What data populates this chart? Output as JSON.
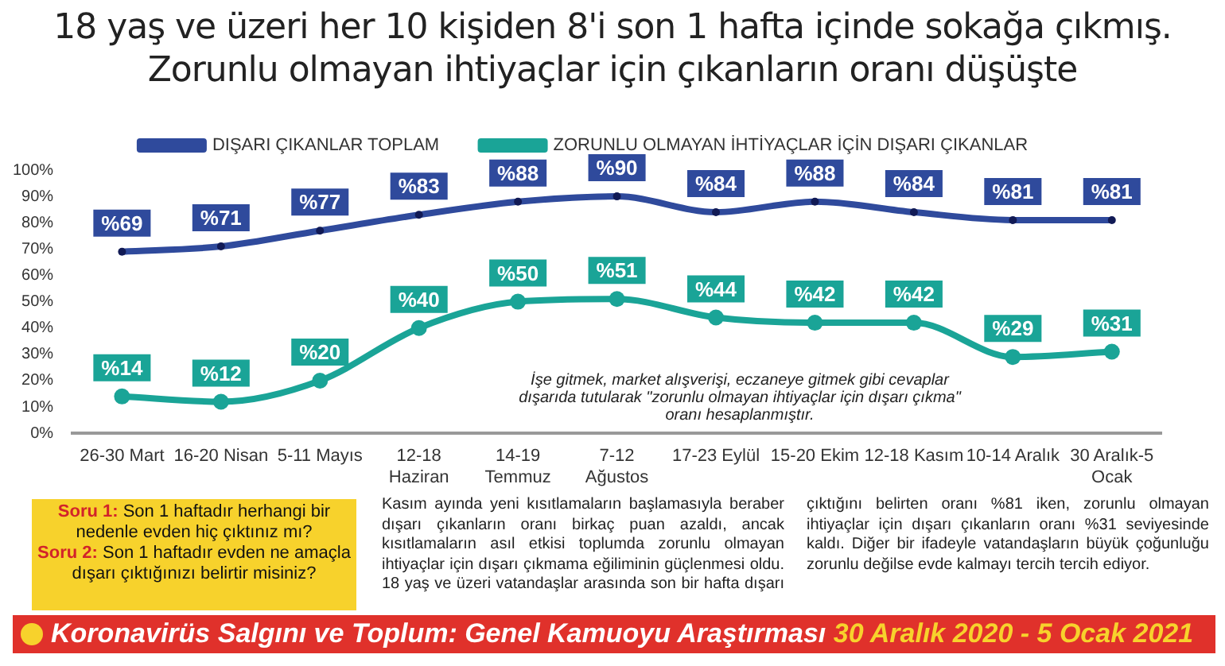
{
  "chart_data": {
    "type": "line",
    "title": "18 yaş ve üzeri her 10 kişiden 8'i son 1 hafta içinde sokağa çıkmış. Zorunlu olmayan ihtiyaçlar için çıkanların oranı düşüşte",
    "categories": [
      "26-30 Mart",
      "16-20 Nisan",
      "5-11 Mayıs",
      "12-18 Haziran",
      "14-19 Temmuz",
      "7-12 Ağustos",
      "17-23 Eylül",
      "15-20 Ekim",
      "12-18 Kasım",
      "10-14 Aralık",
      "30 Aralık-5 Ocak"
    ],
    "series": [
      {
        "name": "DIŞARI ÇIKANLAR TOPLAM",
        "color": "#2f4a9c",
        "values": [
          69,
          71,
          77,
          83,
          88,
          90,
          84,
          88,
          84,
          81,
          81
        ],
        "value_labels": [
          "%69",
          "%71",
          "%77",
          "%83",
          "%88",
          "%90",
          "%84",
          "%88",
          "%84",
          "%81",
          "%81"
        ]
      },
      {
        "name": "ZORUNLU OLMAYAN İHTİYAÇLAR İÇİN DIŞARI ÇIKANLAR",
        "color": "#1aa497",
        "values": [
          14,
          12,
          20,
          40,
          50,
          51,
          44,
          42,
          42,
          29,
          31
        ],
        "value_labels": [
          "%14",
          "%12",
          "%20",
          "%40",
          "%50",
          "%51",
          "%44",
          "%42",
          "%42",
          "%29",
          "%31"
        ]
      }
    ],
    "ylim": [
      0,
      100
    ],
    "yticks": [
      {
        "value": 0,
        "label": "0%"
      },
      {
        "value": 10,
        "label": "10%"
      },
      {
        "value": 20,
        "label": "20%"
      },
      {
        "value": 30,
        "label": "30%"
      },
      {
        "value": 40,
        "label": "40%"
      },
      {
        "value": 50,
        "label": "50%"
      },
      {
        "value": 60,
        "label": "60%"
      },
      {
        "value": 70,
        "label": "70%"
      },
      {
        "value": 80,
        "label": "80%"
      },
      {
        "value": 90,
        "label": "90%"
      },
      {
        "value": 100,
        "label": "100%"
      }
    ],
    "grid": false,
    "legend": "top",
    "marker": "circle",
    "line_style": "solid",
    "annotations": [
      "İşe gitmek, market alışverişi, eczaneye gitmek gibi cevaplar dışarıda tutularak \"zorunlu olmayan ihtiyaçlar için dışarı çıkma\" oranı hesaplanmıştır.",
      "Soru 1: Son 1 haftadır herhangi bir nedenle evden hiç çıktınız mı?",
      "Soru 2: Son 1 haftadır evden ne amaçla dışarı çıktığınızı belirtir misiniz?",
      "Kasım ayında yeni kısıtlamaların başlamasıyla beraber dışarı çıkanların oranı birkaç puan azaldı, ancak kısıtlamaların asıl etkisi toplumda zorunlu olmayan ihtiyaçlar için dışarı çıkmama eğiliminin güçlenmesi oldu. 18 yaş ve üzeri vatandaşlar arasında son bir hafta dışarı çıktığını belirten oranı %81 iken, zorunlu olmayan ihtiyaçlar için dışarı çıkanların oranı %31 seviyesinde kaldı. Diğer bir ifadeyle vatandaşların büyük çoğunluğu zorunlu değilse evde kalmayı tercih tercih ediyor.",
      "Koronavirüs Salgını ve Toplum: Genel Kamuoyu Araştırması",
      "30 Aralık 2020 - 5 Ocak 2021"
    ]
  }
}
